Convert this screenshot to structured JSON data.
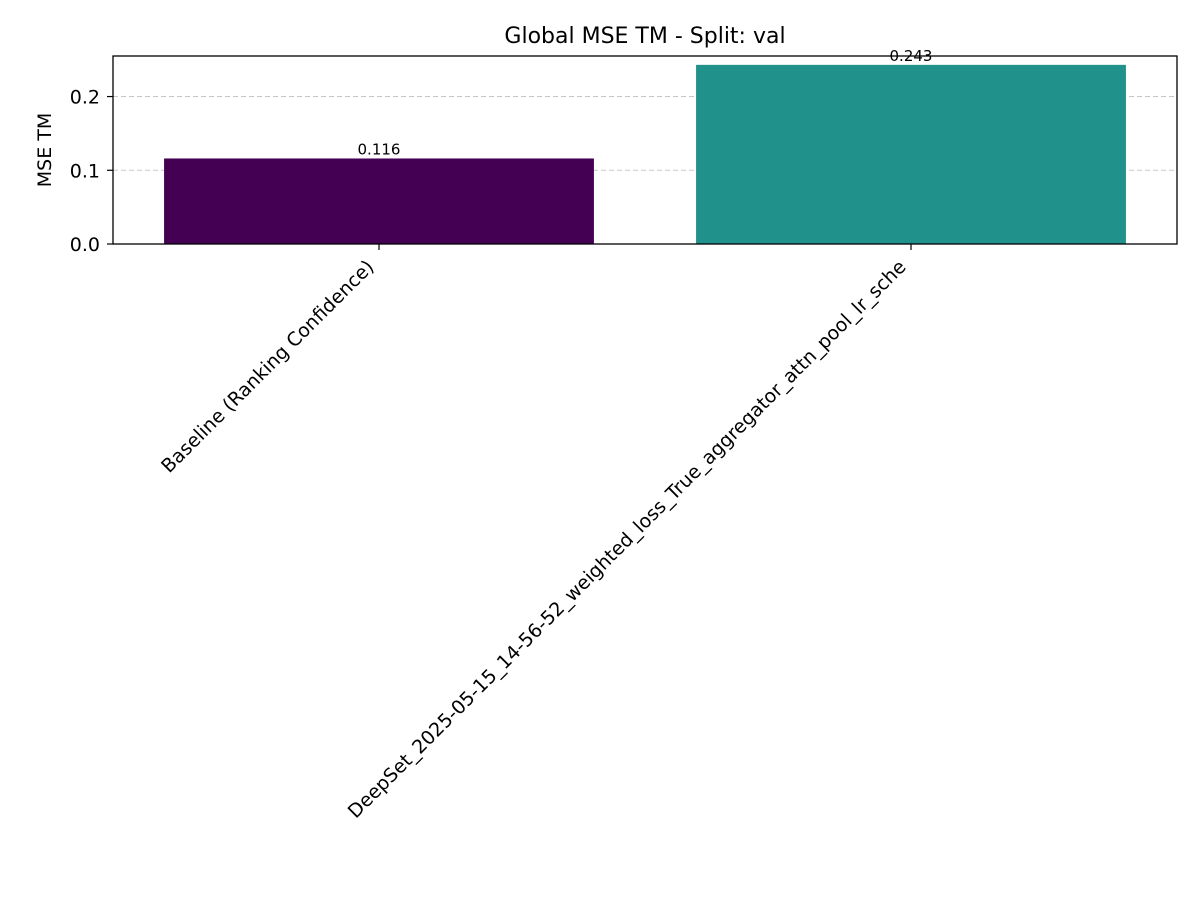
{
  "chart_data": {
    "type": "bar",
    "title": "Global MSE TM - Split: val",
    "xlabel": "",
    "ylabel": "MSE TM",
    "categories": [
      "Baseline (Ranking Confidence)",
      "DeepSet_2025-05-15_14-56-52_weighted_loss_True_aggregator_attn_pool_lr_sche"
    ],
    "values": [
      0.116,
      0.243
    ],
    "data_labels": [
      "0.116",
      "0.243"
    ],
    "colors": [
      "#440154",
      "#21918c"
    ],
    "ylim": [
      0,
      0.255
    ],
    "yticks": [
      0.0,
      0.1,
      0.2
    ],
    "ytick_labels": [
      "0.0",
      "0.1",
      "0.2"
    ],
    "grid": "y-dashed",
    "xtick_rotation_deg": 45
  }
}
